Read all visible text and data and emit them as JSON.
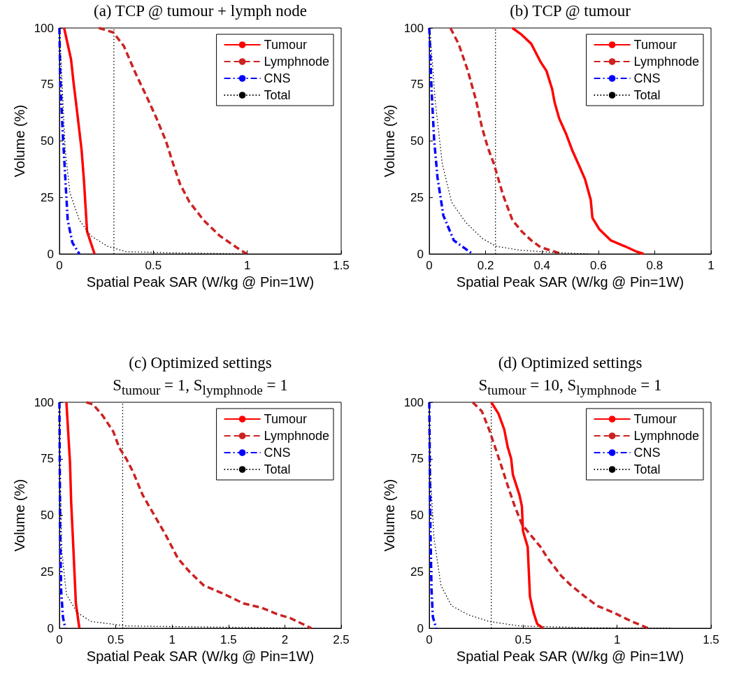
{
  "chart_data": [
    {
      "type": "line",
      "title": "(a) TCP @ tumour + lymph node",
      "xlabel": "Spatial Peak SAR (W/kg @ Pin=1W)",
      "ylabel": "Volume (%)",
      "xlim": [
        0,
        1.5
      ],
      "xticks": [
        0,
        0.5,
        1,
        1.5
      ],
      "ylim": [
        0,
        100
      ],
      "yticks": [
        0,
        25,
        50,
        75,
        100
      ],
      "grid": false,
      "legend": "top right",
      "marker": "none",
      "series": [
        {
          "name": "Tumour",
          "color": "#ff0000",
          "line_style": "solid",
          "x": [
            0.025,
            0.062,
            0.075,
            0.094,
            0.118,
            0.131,
            0.147,
            0.187
          ],
          "values": [
            100,
            86,
            76,
            63,
            46,
            32,
            10,
            0
          ]
        },
        {
          "name": "Lymphnode",
          "color": "#cc2222",
          "line_style": "dashed",
          "x": [
            0.21,
            0.287,
            0.343,
            0.405,
            0.468,
            0.517,
            0.567,
            0.605,
            0.642,
            0.692,
            0.767,
            0.854,
            0.941,
            0.997
          ],
          "values": [
            100,
            98,
            92,
            80,
            69,
            60,
            50,
            40,
            31,
            23,
            15,
            8,
            3,
            0
          ]
        },
        {
          "name": "CNS",
          "color": "#0000ff",
          "line_style": "dashdot",
          "x": [
            0,
            0.004,
            0.016,
            0.031,
            0.044,
            0.069,
            0.106
          ],
          "values": [
            100,
            79,
            56,
            34,
            15,
            5,
            0
          ]
        },
        {
          "name": "Total",
          "color": "#000000",
          "line_style": "dotted",
          "x": [
            0,
            0.012,
            0.031,
            0.056,
            0.106,
            0.168,
            0.256,
            0.355,
            0.6,
            1.0
          ],
          "values": [
            100,
            79,
            46,
            27,
            15,
            8,
            3.4,
            1,
            0.5,
            0
          ]
        }
      ],
      "ref_lines": [
        {
          "axis": "x",
          "value": 0.29,
          "color": "#000000",
          "line_style": "dotted"
        }
      ]
    },
    {
      "type": "line",
      "title": "(b) TCP @ tumour",
      "xlabel": "Spatial Peak SAR (W/kg @ Pin=1W)",
      "ylabel": "Volume (%)",
      "xlim": [
        0,
        1
      ],
      "xticks": [
        0,
        0.2,
        0.4,
        0.6,
        0.8,
        1
      ],
      "ylim": [
        0,
        100
      ],
      "yticks": [
        0,
        25,
        50,
        75,
        100
      ],
      "grid": false,
      "legend": "top right",
      "marker": "none",
      "series": [
        {
          "name": "Tumour",
          "color": "#ff0000",
          "line_style": "solid",
          "x": [
            0.295,
            0.328,
            0.362,
            0.395,
            0.416,
            0.436,
            0.445,
            0.461,
            0.486,
            0.507,
            0.532,
            0.553,
            0.573,
            0.579,
            0.603,
            0.644,
            0.694,
            0.736,
            0.761
          ],
          "values": [
            100,
            97,
            93,
            85,
            81,
            73,
            67,
            60,
            53,
            46,
            39,
            33,
            24,
            16,
            11,
            6,
            3.4,
            1,
            0
          ]
        },
        {
          "name": "Lymphnode",
          "color": "#cc2222",
          "line_style": "dashed",
          "x": [
            0.075,
            0.104,
            0.137,
            0.166,
            0.187,
            0.208,
            0.229,
            0.262,
            0.295,
            0.328,
            0.362,
            0.395,
            0.47
          ],
          "values": [
            100,
            93,
            81,
            68,
            56,
            47,
            40,
            26,
            15,
            10,
            6,
            3,
            0
          ]
        },
        {
          "name": "CNS",
          "color": "#0000ff",
          "line_style": "dashdot",
          "x": [
            0,
            0.008,
            0.017,
            0.029,
            0.05,
            0.087,
            0.154
          ],
          "values": [
            100,
            73,
            51,
            34,
            17,
            6,
            0
          ]
        },
        {
          "name": "Total",
          "color": "#000000",
          "line_style": "dotted",
          "x": [
            0,
            0.004,
            0.021,
            0.046,
            0.079,
            0.129,
            0.187,
            0.237,
            0.32,
            0.445,
            0.57
          ],
          "values": [
            100,
            96,
            68,
            40,
            23,
            14,
            7,
            3.4,
            1.7,
            0.6,
            0
          ]
        }
      ],
      "ref_lines": [
        {
          "axis": "x",
          "value": 0.235,
          "color": "#000000",
          "line_style": "dotted"
        }
      ]
    },
    {
      "type": "line",
      "title": "(c) Optimized settings\nS$_{tumour}$ = 1, S$_{lymphnode}$ = 1",
      "xlabel": "Spatial Peak SAR (W/kg @ Pin=1W)",
      "ylabel": "Volume (%)",
      "xlim": [
        0,
        2.5
      ],
      "xticks": [
        0,
        0.5,
        1,
        1.5,
        2,
        2.5
      ],
      "ylim": [
        0,
        100
      ],
      "yticks": [
        0,
        25,
        50,
        75,
        100
      ],
      "grid": false,
      "legend": "top right",
      "marker": "none",
      "series": [
        {
          "name": "Tumour",
          "color": "#ff0000",
          "line_style": "solid",
          "x": [
            0.062,
            0.094,
            0.104,
            0.125,
            0.146,
            0.177
          ],
          "values": [
            100,
            73,
            56,
            34,
            11,
            0
          ]
        },
        {
          "name": "Lymphnode",
          "color": "#cc2222",
          "line_style": "dashed",
          "x": [
            0.239,
            0.3,
            0.385,
            0.478,
            0.53,
            0.593,
            0.655,
            0.738,
            0.842,
            0.946,
            1.05,
            1.154,
            1.279,
            1.466,
            1.632,
            1.798,
            1.944,
            2.048,
            2.152,
            2.235
          ],
          "values": [
            100,
            99,
            94,
            87,
            80,
            75,
            69,
            59,
            50,
            41,
            31,
            25,
            19,
            15,
            11,
            9,
            6,
            4.5,
            2,
            0
          ]
        },
        {
          "name": "CNS",
          "color": "#0000ff",
          "line_style": "dashdot",
          "x": [
            0,
            0.006,
            0.015,
            0.031,
            0.052
          ],
          "values": [
            100,
            45,
            17,
            5,
            0
          ]
        },
        {
          "name": "Total",
          "color": "#000000",
          "line_style": "dotted",
          "x": [
            0,
            0,
            0.021,
            0.062,
            0.156,
            0.281,
            0.593,
            1.216,
            2.2
          ],
          "values": [
            100,
            79,
            34,
            15,
            7,
            3,
            1,
            0.6,
            0
          ]
        }
      ],
      "ref_lines": [
        {
          "axis": "x",
          "value": 0.561,
          "color": "#000000",
          "line_style": "dotted"
        }
      ]
    },
    {
      "type": "line",
      "title": "(d) Optimized settings\nS$_{tumour}$ = 10, S$_{lymphnode}$ = 1",
      "xlabel": "Spatial Peak SAR (W/kg @ Pin=1W)",
      "ylabel": "Volume (%)",
      "xlim": [
        0,
        1.5
      ],
      "xticks": [
        0,
        0.5,
        1,
        1.5
      ],
      "ylim": [
        0,
        100
      ],
      "yticks": [
        0,
        25,
        50,
        75,
        100
      ],
      "grid": false,
      "legend": "top right",
      "marker": "none",
      "series": [
        {
          "name": "Tumour",
          "color": "#ff0000",
          "line_style": "solid",
          "x": [
            0.33,
            0.368,
            0.399,
            0.418,
            0.436,
            0.445,
            0.48,
            0.493,
            0.499,
            0.524,
            0.53,
            0.536,
            0.555,
            0.574,
            0.605
          ],
          "values": [
            100,
            95,
            88,
            80,
            75,
            68,
            59,
            54,
            43,
            36,
            25,
            14,
            7,
            2,
            0
          ]
        },
        {
          "name": "Lymphnode",
          "color": "#cc2222",
          "line_style": "dashed",
          "x": [
            0.231,
            0.28,
            0.318,
            0.355,
            0.387,
            0.418,
            0.455,
            0.493,
            0.542,
            0.592,
            0.63,
            0.704,
            0.754,
            0.829,
            0.892,
            0.979,
            1.078,
            1.166
          ],
          "values": [
            100,
            96,
            88,
            79,
            71,
            63,
            54,
            46,
            41,
            36,
            31,
            23,
            19,
            14,
            10,
            7,
            3,
            0
          ]
        },
        {
          "name": "CNS",
          "color": "#0000ff",
          "line_style": "dashdot",
          "x": [
            0,
            0.006,
            0.012,
            0.019,
            0.037
          ],
          "values": [
            100,
            45,
            17,
            5,
            0
          ]
        },
        {
          "name": "Total",
          "color": "#000000",
          "line_style": "dotted",
          "x": [
            0,
            0.006,
            0.025,
            0.062,
            0.118,
            0.206,
            0.318,
            0.48,
            0.854,
            1.29
          ],
          "values": [
            100,
            68,
            40,
            19,
            10,
            6,
            3,
            1,
            0.2,
            0
          ]
        }
      ],
      "ref_lines": [
        {
          "axis": "x",
          "value": 0.33,
          "color": "#000000",
          "line_style": "dotted"
        }
      ]
    }
  ]
}
